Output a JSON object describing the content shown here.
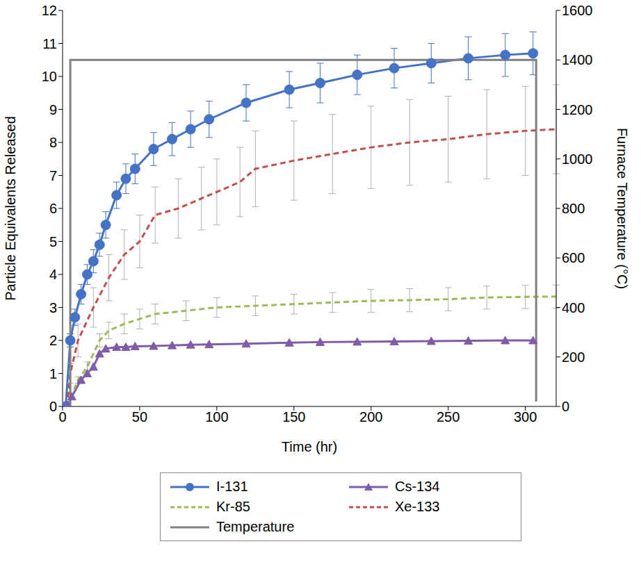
{
  "chart_data": {
    "type": "line",
    "x_label": "Time (hr)",
    "y_label": "Particle Equivalents Released",
    "y2_label": "Furnace Temperature (°C)",
    "xlim": [
      0,
      320
    ],
    "xticks": [
      0,
      50,
      100,
      150,
      200,
      250,
      300
    ],
    "ylim": [
      0,
      12
    ],
    "yticks": [
      0,
      1,
      2,
      3,
      4,
      5,
      6,
      7,
      8,
      9,
      10,
      11,
      12
    ],
    "y2lim": [
      0,
      1600
    ],
    "y2ticks": [
      0,
      200,
      400,
      600,
      800,
      1000,
      1200,
      1400,
      1600
    ],
    "grid": false,
    "legend": "bottom",
    "series": [
      {
        "name": "I-131",
        "color": "#4472c4",
        "marker": "circle",
        "line_style": "solid",
        "x": [
          2,
          5,
          8,
          12,
          16,
          20,
          24,
          28,
          35,
          41,
          47,
          59,
          71,
          83,
          95,
          119,
          147,
          167,
          191,
          215,
          239,
          263,
          287,
          305
        ],
        "values": [
          0,
          2.0,
          2.7,
          3.4,
          4.0,
          4.4,
          4.9,
          5.5,
          6.4,
          6.9,
          7.2,
          7.8,
          8.1,
          8.4,
          8.7,
          9.2,
          9.6,
          9.8,
          10.05,
          10.25,
          10.4,
          10.55,
          10.65,
          10.7
        ],
        "errors": [
          0,
          0.2,
          0.25,
          0.3,
          0.3,
          0.35,
          0.35,
          0.4,
          0.4,
          0.45,
          0.45,
          0.5,
          0.5,
          0.55,
          0.55,
          0.55,
          0.55,
          0.6,
          0.6,
          0.6,
          0.6,
          0.65,
          0.65,
          0.65
        ]
      },
      {
        "name": "Cs-134",
        "color": "#7e5ca8",
        "marker": "triangle",
        "line_style": "solid",
        "x": [
          3,
          6,
          12,
          16,
          20,
          24,
          28,
          35,
          41,
          47,
          59,
          71,
          83,
          95,
          119,
          147,
          167,
          191,
          215,
          239,
          263,
          287,
          305
        ],
        "values": [
          0,
          0.3,
          0.8,
          1.0,
          1.2,
          1.6,
          1.75,
          1.8,
          1.8,
          1.82,
          1.83,
          1.85,
          1.87,
          1.88,
          1.9,
          1.93,
          1.95,
          1.96,
          1.97,
          1.98,
          1.99,
          2.0,
          2.0
        ]
      },
      {
        "name": "Kr-85",
        "color": "#9bbb59",
        "marker": "none",
        "line_style": "dashed",
        "x": [
          3,
          10,
          16,
          24,
          30,
          40,
          50,
          60,
          80,
          100,
          125,
          150,
          175,
          200,
          225,
          250,
          275,
          300,
          320
        ],
        "values": [
          0,
          0.8,
          1.2,
          2.0,
          2.3,
          2.5,
          2.65,
          2.8,
          2.9,
          3.0,
          3.05,
          3.1,
          3.15,
          3.2,
          3.22,
          3.25,
          3.3,
          3.32,
          3.33
        ],
        "errors": [
          0,
          0.1,
          0.15,
          0.2,
          0.25,
          0.3,
          0.3,
          0.3,
          0.3,
          0.3,
          0.3,
          0.3,
          0.3,
          0.35,
          0.35,
          0.35,
          0.35,
          0.35,
          0.35
        ]
      },
      {
        "name": "Xe-133",
        "color": "#c0504d",
        "marker": "none",
        "line_style": "dashed",
        "x": [
          3,
          5,
          10,
          20,
          30,
          40,
          50,
          60,
          75,
          90,
          100,
          115,
          125,
          150,
          175,
          200,
          225,
          250,
          275,
          300,
          320
        ],
        "values": [
          0,
          1.0,
          2.0,
          3.0,
          3.9,
          4.6,
          5.0,
          5.8,
          6.0,
          6.3,
          6.5,
          6.8,
          7.2,
          7.45,
          7.65,
          7.85,
          8.0,
          8.1,
          8.25,
          8.35,
          8.4
        ],
        "errors": [
          0,
          0.3,
          0.5,
          0.6,
          0.7,
          0.75,
          0.8,
          0.85,
          0.9,
          0.95,
          1.0,
          1.05,
          1.15,
          1.2,
          1.2,
          1.25,
          1.3,
          1.3,
          1.35,
          1.35,
          1.35
        ]
      },
      {
        "name": "Temperature",
        "color": "#808080",
        "marker": "none",
        "line_style": "solid",
        "axis": "y2",
        "x": [
          5,
          5,
          307,
          307
        ],
        "values": [
          0,
          1400,
          1400,
          20
        ]
      }
    ]
  }
}
